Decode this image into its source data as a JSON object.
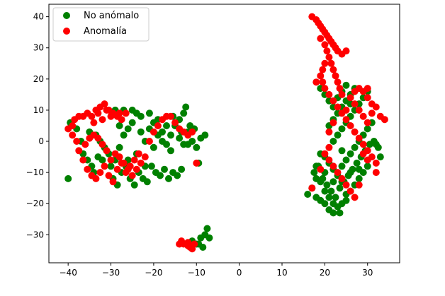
{
  "chart_data": {
    "type": "scatter",
    "title": "",
    "xlabel": "",
    "ylabel": "",
    "xlim": [
      -44.5,
      37.5
    ],
    "ylim": [
      -39,
      44
    ],
    "xticks": [
      -40,
      -30,
      -20,
      -10,
      0,
      10,
      20,
      30
    ],
    "yticks": [
      -30,
      -20,
      -10,
      0,
      10,
      20,
      30,
      40
    ],
    "grid": false,
    "legend_position": "upper-left",
    "series": [
      {
        "name": "No anómalo",
        "color": "#008000",
        "points": [
          [
            -40,
            -12
          ],
          [
            -39.5,
            6
          ],
          [
            -38,
            4
          ],
          [
            -37,
            0
          ],
          [
            -36.5,
            -4
          ],
          [
            -35.5,
            -6
          ],
          [
            -34.5,
            -8
          ],
          [
            -34,
            -10
          ],
          [
            -33,
            -5
          ],
          [
            -32,
            -6
          ],
          [
            -31,
            -3
          ],
          [
            -30,
            -8
          ],
          [
            -29.5,
            -12
          ],
          [
            -28.5,
            -14
          ],
          [
            -27.5,
            -10
          ],
          [
            -26.5,
            -8
          ],
          [
            -25.5,
            -12
          ],
          [
            -24.5,
            -14
          ],
          [
            -23.5,
            -10
          ],
          [
            -22.5,
            -12
          ],
          [
            -21.5,
            -13
          ],
          [
            -20.5,
            -8
          ],
          [
            -19.5,
            -10
          ],
          [
            -18.5,
            -11
          ],
          [
            -17.5,
            -9
          ],
          [
            -16.5,
            -12
          ],
          [
            -15.5,
            -10
          ],
          [
            -14.5,
            -11
          ],
          [
            -13.5,
            -9
          ],
          [
            -35,
            3
          ],
          [
            -33.5,
            2
          ],
          [
            -32.5,
            0
          ],
          [
            -31.5,
            -2
          ],
          [
            -30.5,
            -4
          ],
          [
            -29,
            -6
          ],
          [
            -28,
            -2
          ],
          [
            -27,
            2
          ],
          [
            -26,
            4
          ],
          [
            -25,
            6
          ],
          [
            -24,
            9
          ],
          [
            -23,
            3
          ],
          [
            -22,
            0
          ],
          [
            -21,
            4
          ],
          [
            -20,
            6
          ],
          [
            -19,
            2
          ],
          [
            -18,
            0
          ],
          [
            -17,
            -1
          ],
          [
            -16,
            2
          ],
          [
            -15,
            5
          ],
          [
            -14,
            7
          ],
          [
            -13,
            9
          ],
          [
            -12.5,
            11
          ],
          [
            -12,
            3
          ],
          [
            -11,
            0
          ],
          [
            -10,
            -2
          ],
          [
            -9,
            1
          ],
          [
            -8,
            2
          ],
          [
            -11.5,
            5
          ],
          [
            -10.5,
            4
          ],
          [
            -13,
            -1
          ],
          [
            -14,
            1
          ],
          [
            -16,
            -3
          ],
          [
            -18,
            3
          ],
          [
            -20,
            -2
          ],
          [
            -22,
            -8
          ],
          [
            -24,
            -4
          ],
          [
            -26,
            -6
          ],
          [
            -28,
            5
          ],
          [
            -29,
            10
          ],
          [
            -27,
            10
          ],
          [
            -25,
            10
          ],
          [
            -23,
            8
          ],
          [
            -21,
            9
          ],
          [
            -19,
            7
          ],
          [
            -17,
            5
          ],
          [
            -15.5,
            8
          ],
          [
            -13.5,
            3
          ],
          [
            -12,
            -1
          ],
          [
            -9.5,
            -7
          ],
          [
            -10,
            -33
          ],
          [
            -9,
            -31
          ],
          [
            -8,
            -30
          ],
          [
            -7.5,
            -28
          ],
          [
            -7,
            -31
          ],
          [
            -8.5,
            -34
          ],
          [
            -9.5,
            -33
          ],
          [
            -11,
            -32
          ],
          [
            16,
            -17
          ],
          [
            17,
            -15
          ],
          [
            18,
            -18
          ],
          [
            19,
            -19
          ],
          [
            20,
            -20
          ],
          [
            21,
            -22
          ],
          [
            22,
            -23
          ],
          [
            23,
            -21
          ],
          [
            24,
            -20
          ],
          [
            25,
            -19
          ],
          [
            17.5,
            -10
          ],
          [
            18.5,
            -8
          ],
          [
            19.5,
            -12
          ],
          [
            20.5,
            -14
          ],
          [
            21.5,
            -16
          ],
          [
            22.5,
            -18
          ],
          [
            23.5,
            -15
          ],
          [
            24.5,
            -13
          ],
          [
            25.5,
            -11
          ],
          [
            26.5,
            -9
          ],
          [
            27.5,
            -7
          ],
          [
            28.5,
            -5
          ],
          [
            29.5,
            -3
          ],
          [
            30.5,
            -1
          ],
          [
            31.5,
            0
          ],
          [
            32.5,
            -2
          ],
          [
            33,
            -5
          ],
          [
            30,
            -8
          ],
          [
            29,
            -10
          ],
          [
            28,
            -12
          ],
          [
            27,
            -14
          ],
          [
            26,
            -16
          ],
          [
            25,
            -17
          ],
          [
            24,
            -13
          ],
          [
            23,
            -11
          ],
          [
            22,
            -9
          ],
          [
            21,
            -7
          ],
          [
            20,
            -5
          ],
          [
            19,
            -4
          ],
          [
            18,
            -8
          ],
          [
            19,
            -13
          ],
          [
            20,
            -16
          ],
          [
            21,
            -18
          ],
          [
            22,
            -20
          ],
          [
            23.5,
            -23
          ],
          [
            24,
            -8
          ],
          [
            25,
            -6
          ],
          [
            26,
            -4
          ],
          [
            27,
            -2
          ],
          [
            28,
            0
          ],
          [
            29,
            2
          ],
          [
            30,
            4
          ],
          [
            31,
            6
          ],
          [
            32,
            -1
          ],
          [
            22,
            0
          ],
          [
            23,
            2
          ],
          [
            24,
            4
          ],
          [
            25,
            6
          ],
          [
            26,
            8
          ],
          [
            27,
            10
          ],
          [
            28,
            12
          ],
          [
            29,
            14
          ],
          [
            30,
            16
          ],
          [
            21,
            5
          ],
          [
            22,
            7
          ],
          [
            23,
            9
          ],
          [
            24,
            11
          ],
          [
            25,
            13
          ],
          [
            26,
            15
          ],
          [
            27,
            17
          ],
          [
            19,
            17
          ],
          [
            20,
            15
          ],
          [
            21,
            13
          ],
          [
            22,
            11
          ],
          [
            23,
            14
          ],
          [
            24,
            16
          ],
          [
            25,
            18
          ],
          [
            26,
            12
          ],
          [
            24,
            -3
          ],
          [
            26,
            -10
          ],
          [
            28,
            -9
          ],
          [
            22,
            -13
          ],
          [
            20,
            -10
          ],
          [
            18,
            -12
          ]
        ]
      },
      {
        "name": "Anomalía",
        "color": "#ff0000",
        "points": [
          [
            -40,
            4
          ],
          [
            -39,
            5
          ],
          [
            -38.5,
            7
          ],
          [
            -37.5,
            8
          ],
          [
            -36.5,
            8
          ],
          [
            -35.5,
            9
          ],
          [
            -34.5,
            8
          ],
          [
            -33.5,
            10
          ],
          [
            -32.5,
            11
          ],
          [
            -31.5,
            12
          ],
          [
            -30.5,
            10
          ],
          [
            -29.5,
            9
          ],
          [
            -28.5,
            8
          ],
          [
            -27.5,
            7
          ],
          [
            -26.5,
            9
          ],
          [
            -39,
            2
          ],
          [
            -38,
            0
          ],
          [
            -37.5,
            -3
          ],
          [
            -36.5,
            -6
          ],
          [
            -35.5,
            -9
          ],
          [
            -34.5,
            -11
          ],
          [
            -33.5,
            -12
          ],
          [
            -32.5,
            -10
          ],
          [
            -31.5,
            -8
          ],
          [
            -30.5,
            -11
          ],
          [
            -29.5,
            -13
          ],
          [
            -28.5,
            -9
          ],
          [
            -27.5,
            -7
          ],
          [
            -26.5,
            -10
          ],
          [
            -25.5,
            -8
          ],
          [
            -24.5,
            -6
          ],
          [
            -23.5,
            -4
          ],
          [
            -36,
            -1
          ],
          [
            -35,
            1
          ],
          [
            -34,
            2
          ],
          [
            -33,
            1
          ],
          [
            -32,
            -1
          ],
          [
            -31,
            -3
          ],
          [
            -30,
            -6
          ],
          [
            -29,
            -4
          ],
          [
            -28,
            -5
          ],
          [
            -27,
            -7
          ],
          [
            -26,
            -9
          ],
          [
            -25,
            -11
          ],
          [
            -24,
            -9
          ],
          [
            -23,
            -7
          ],
          [
            -22,
            -5
          ],
          [
            -21,
            0
          ],
          [
            -20,
            3
          ],
          [
            -19,
            5
          ],
          [
            -18,
            7
          ],
          [
            -17,
            8
          ],
          [
            -16,
            8
          ],
          [
            -15,
            6
          ],
          [
            -14,
            4
          ],
          [
            -13,
            3
          ],
          [
            -12,
            2
          ],
          [
            -11,
            3
          ],
          [
            -10,
            -7
          ],
          [
            -34,
            6
          ],
          [
            -32,
            7
          ],
          [
            -30,
            8
          ],
          [
            -28,
            9
          ],
          [
            -33,
            9
          ],
          [
            -31,
            10
          ],
          [
            -14,
            -33
          ],
          [
            -13,
            -33
          ],
          [
            -12,
            -33.5
          ],
          [
            -11.5,
            -34
          ],
          [
            -11,
            -34.5
          ],
          [
            -12,
            -32.5
          ],
          [
            -13.5,
            -32
          ],
          [
            -10.5,
            -33
          ],
          [
            17,
            40
          ],
          [
            18,
            39
          ],
          [
            18.5,
            38
          ],
          [
            19,
            37
          ],
          [
            19.5,
            36
          ],
          [
            20,
            35
          ],
          [
            20.5,
            34
          ],
          [
            21,
            33
          ],
          [
            21.5,
            32
          ],
          [
            22,
            31
          ],
          [
            22.5,
            30
          ],
          [
            23,
            29
          ],
          [
            24,
            28
          ],
          [
            25,
            29
          ],
          [
            19,
            33
          ],
          [
            20,
            31
          ],
          [
            20.5,
            29
          ],
          [
            21,
            27
          ],
          [
            21.5,
            25
          ],
          [
            22,
            23
          ],
          [
            22.5,
            21
          ],
          [
            23,
            19
          ],
          [
            23.5,
            17
          ],
          [
            24,
            15
          ],
          [
            20,
            25
          ],
          [
            19.5,
            23
          ],
          [
            19,
            21
          ],
          [
            19.5,
            19
          ],
          [
            20,
            17
          ],
          [
            21,
            15
          ],
          [
            22,
            13
          ],
          [
            23,
            11
          ],
          [
            24,
            9
          ],
          [
            25,
            7
          ],
          [
            26,
            5
          ],
          [
            27,
            3
          ],
          [
            28,
            1
          ],
          [
            29,
            -1
          ],
          [
            30,
            -3
          ],
          [
            31,
            -5
          ],
          [
            32,
            -7
          ],
          [
            27,
            12
          ],
          [
            28,
            10
          ],
          [
            29,
            8
          ],
          [
            30,
            6
          ],
          [
            31,
            9
          ],
          [
            32,
            11
          ],
          [
            33,
            8
          ],
          [
            34,
            7
          ],
          [
            28,
            17
          ],
          [
            29,
            16
          ],
          [
            30,
            14
          ],
          [
            31,
            12
          ],
          [
            25,
            10
          ],
          [
            26,
            14
          ],
          [
            27,
            16
          ],
          [
            30,
            17
          ],
          [
            21,
            -6
          ],
          [
            22,
            -8
          ],
          [
            23,
            -10
          ],
          [
            24,
            -12
          ],
          [
            25,
            -14
          ],
          [
            26,
            -16
          ],
          [
            27,
            -18
          ],
          [
            21,
            -2
          ],
          [
            20,
            -4
          ],
          [
            19,
            -9
          ],
          [
            17,
            -15
          ],
          [
            28,
            -14
          ],
          [
            32,
            -10
          ],
          [
            30,
            -6
          ],
          [
            29,
            -4
          ],
          [
            18,
            19
          ],
          [
            21,
            3
          ],
          [
            22,
            6
          ]
        ]
      }
    ]
  }
}
